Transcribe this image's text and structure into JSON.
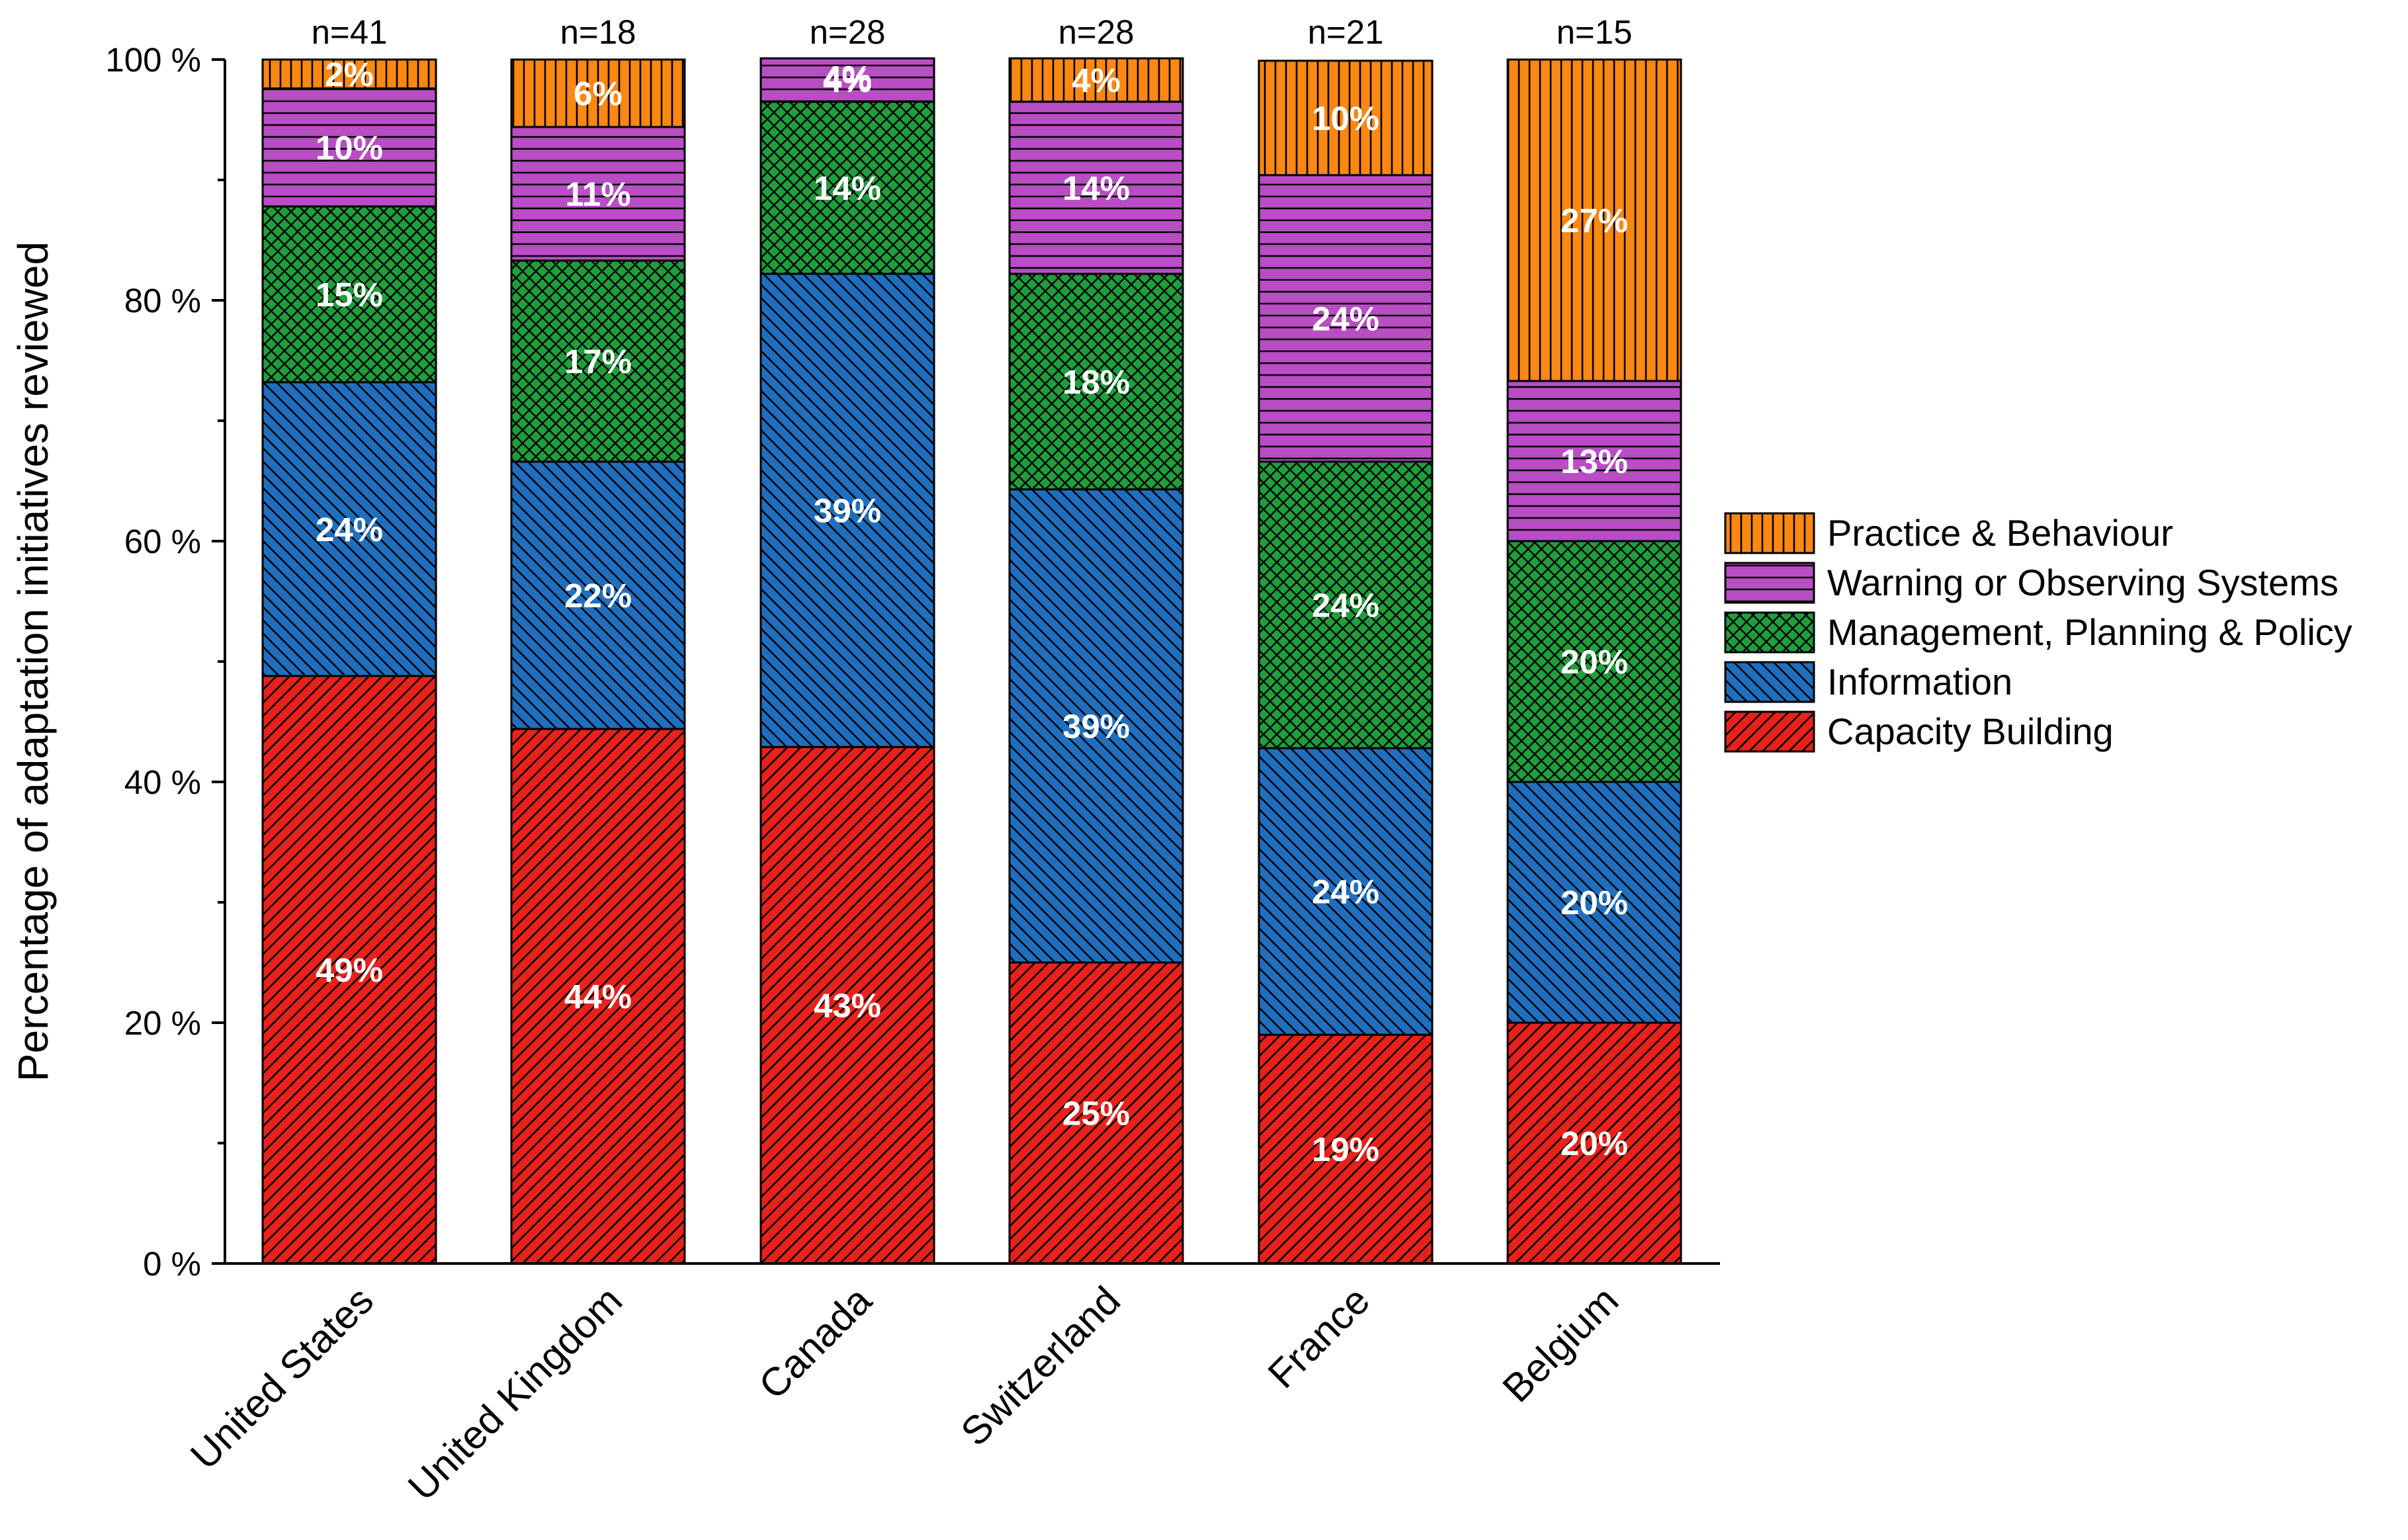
{
  "chart_data": {
    "type": "bar",
    "stacked": true,
    "ylabel": "Percentage of adaptation initiatives reviewed",
    "xlabel": "",
    "ylim": [
      0,
      100
    ],
    "yticks": [
      0,
      20,
      40,
      60,
      80,
      100
    ],
    "ytick_labels": [
      "0 %",
      "20 %",
      "40 %",
      "60 %",
      "80 %",
      "100 %"
    ],
    "categories": [
      "United States",
      "United Kingdom",
      "Canada",
      "Switzerland",
      "France",
      "Belgium"
    ],
    "sample_sizes": [
      "n=41",
      "n=18",
      "n=28",
      "n=28",
      "n=21",
      "n=15"
    ],
    "legend_position": "right",
    "series": [
      {
        "name": "Capacity Building",
        "color": "#e8211b",
        "pattern": "diag-up",
        "values": [
          48.8,
          44.4,
          42.9,
          25.0,
          19.0,
          20.0
        ],
        "labels": [
          "49%",
          "44%",
          "43%",
          "25%",
          "19%",
          "20%"
        ]
      },
      {
        "name": "Information",
        "color": "#1f6fc0",
        "pattern": "diag-down",
        "values": [
          24.4,
          22.2,
          39.3,
          39.3,
          23.8,
          20.0
        ],
        "labels": [
          "24%",
          "22%",
          "39%",
          "39%",
          "24%",
          "20%"
        ]
      },
      {
        "name": "Management, Planning & Policy",
        "color": "#1f9e3c",
        "pattern": "crosshatch",
        "values": [
          14.6,
          16.7,
          14.3,
          17.9,
          23.8,
          20.0
        ],
        "labels": [
          "15%",
          "17%",
          "14%",
          "18%",
          "24%",
          "20%"
        ]
      },
      {
        "name": "Warning or Observing Systems",
        "color": "#b84dc4",
        "pattern": "horizontal",
        "values": [
          9.8,
          11.1,
          3.6,
          14.3,
          23.8,
          13.3
        ],
        "labels": [
          "10%",
          "11%",
          "4%",
          "14%",
          "24%",
          "13%"
        ]
      },
      {
        "name": "Practice & Behaviour",
        "color": "#fb8812",
        "pattern": "vertical",
        "values": [
          2.4,
          5.6,
          0,
          3.6,
          9.5,
          26.7
        ],
        "labels": [
          "2%",
          "6%",
          "",
          "4%",
          "10%",
          "27%"
        ]
      }
    ],
    "extra_labels": [
      {
        "category": "Canada",
        "text": "4%"
      }
    ]
  }
}
